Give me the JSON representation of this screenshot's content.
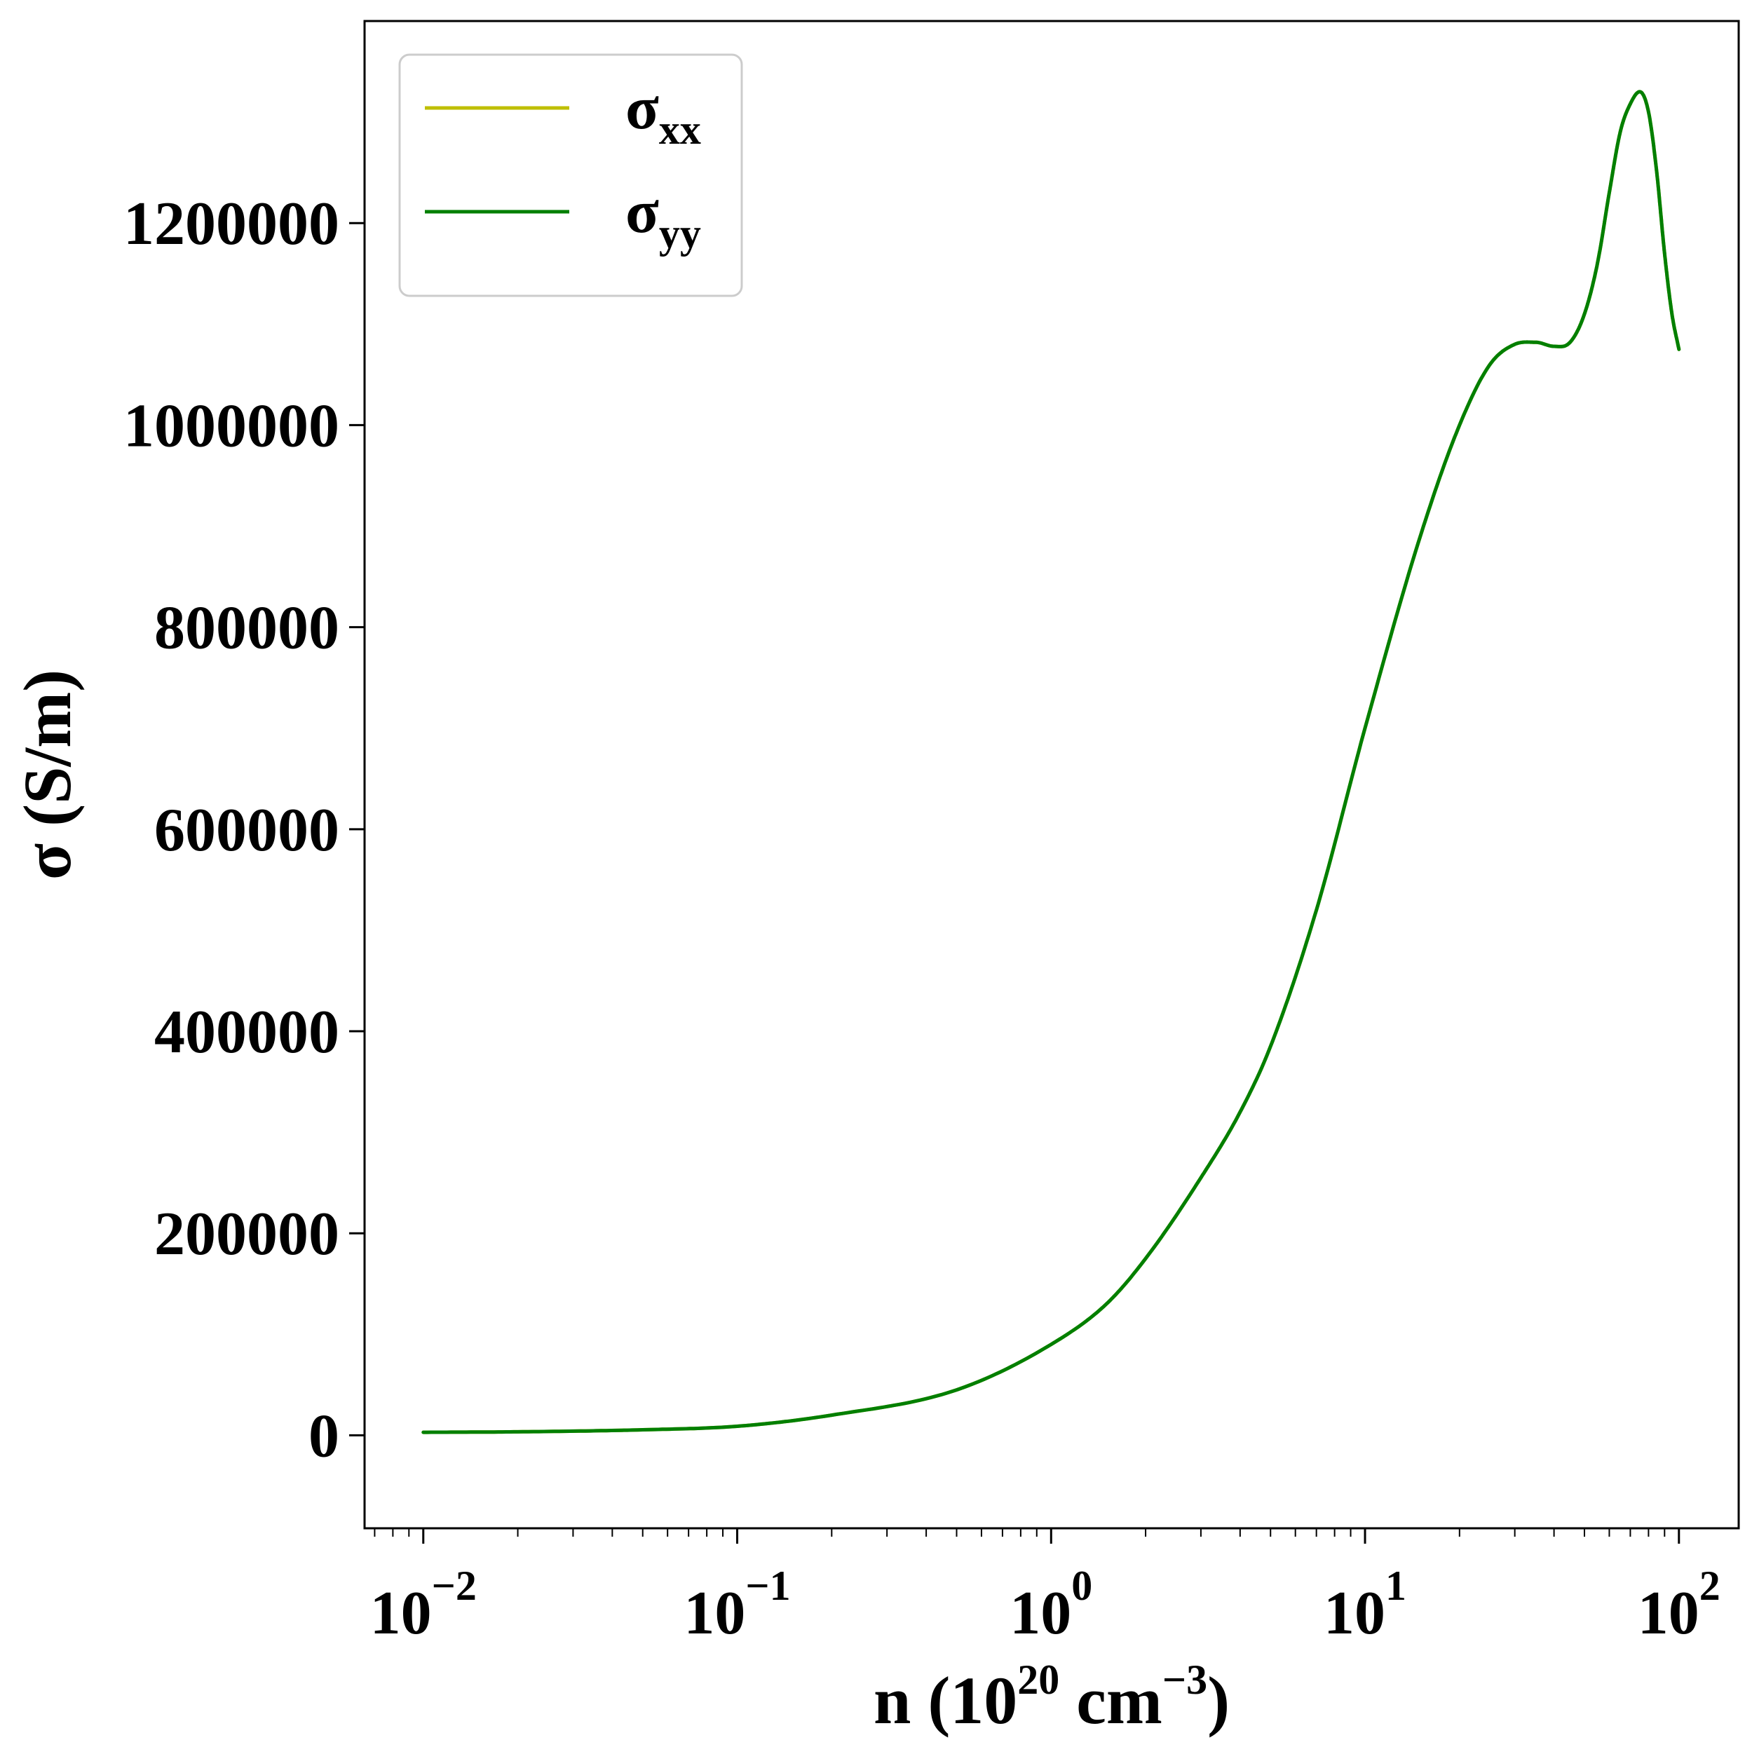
{
  "chart_data": {
    "type": "line",
    "xscale": "log",
    "xlim": [
      0.0065,
      155
    ],
    "ylim": [
      -92000,
      1400000
    ],
    "xlabel": {
      "base": "n (10",
      "exp1": "20",
      "mid": " cm",
      "exp2": "−3",
      "end": ")"
    },
    "ylabel": "σ (S/m)",
    "x_ticks": [
      {
        "value": 0.01,
        "base": "10",
        "exp": "−2"
      },
      {
        "value": 0.1,
        "base": "10",
        "exp": "−1"
      },
      {
        "value": 1,
        "base": "10",
        "exp": "0"
      },
      {
        "value": 10,
        "base": "10",
        "exp": "1"
      },
      {
        "value": 100,
        "base": "10",
        "exp": "2"
      }
    ],
    "y_ticks": [
      {
        "value": 0,
        "label": "0"
      },
      {
        "value": 200000,
        "label": "200000"
      },
      {
        "value": 400000,
        "label": "400000"
      },
      {
        "value": 600000,
        "label": "600000"
      },
      {
        "value": 800000,
        "label": "800000"
      },
      {
        "value": 1000000,
        "label": "1000000"
      },
      {
        "value": 1200000,
        "label": "1200000"
      }
    ],
    "legend_position": "top-left",
    "grid": false,
    "x": [
      0.01,
      0.02,
      0.05,
      0.1,
      0.2,
      0.5,
      1,
      1.5,
      2,
      3,
      4,
      5,
      7,
      10,
      15,
      20,
      25,
      30,
      35,
      40,
      45,
      50,
      55,
      60,
      65,
      70,
      75,
      80,
      85,
      90,
      95,
      100
    ],
    "series": [
      {
        "name": "σxx",
        "label_main": "σ",
        "label_sub": "xx",
        "color": "#bfbf00",
        "values": [
          3000,
          3500,
          5500,
          9000,
          20000,
          45000,
          90000,
          130000,
          175000,
          255000,
          320000,
          385000,
          520000,
          700000,
          890000,
          1000000,
          1060000,
          1080000,
          1082000,
          1078000,
          1082000,
          1110000,
          1160000,
          1230000,
          1290000,
          1318000,
          1330000,
          1310000,
          1250000,
          1170000,
          1110000,
          1075000
        ]
      },
      {
        "name": "σyy",
        "label_main": "σ",
        "label_sub": "yy",
        "color": "#007f00",
        "values": [
          3000,
          3500,
          5500,
          9000,
          20000,
          45000,
          90000,
          130000,
          175000,
          255000,
          320000,
          385000,
          520000,
          700000,
          890000,
          1000000,
          1060000,
          1080000,
          1082000,
          1078000,
          1082000,
          1110000,
          1160000,
          1230000,
          1290000,
          1318000,
          1330000,
          1310000,
          1250000,
          1170000,
          1110000,
          1075000
        ]
      }
    ]
  }
}
